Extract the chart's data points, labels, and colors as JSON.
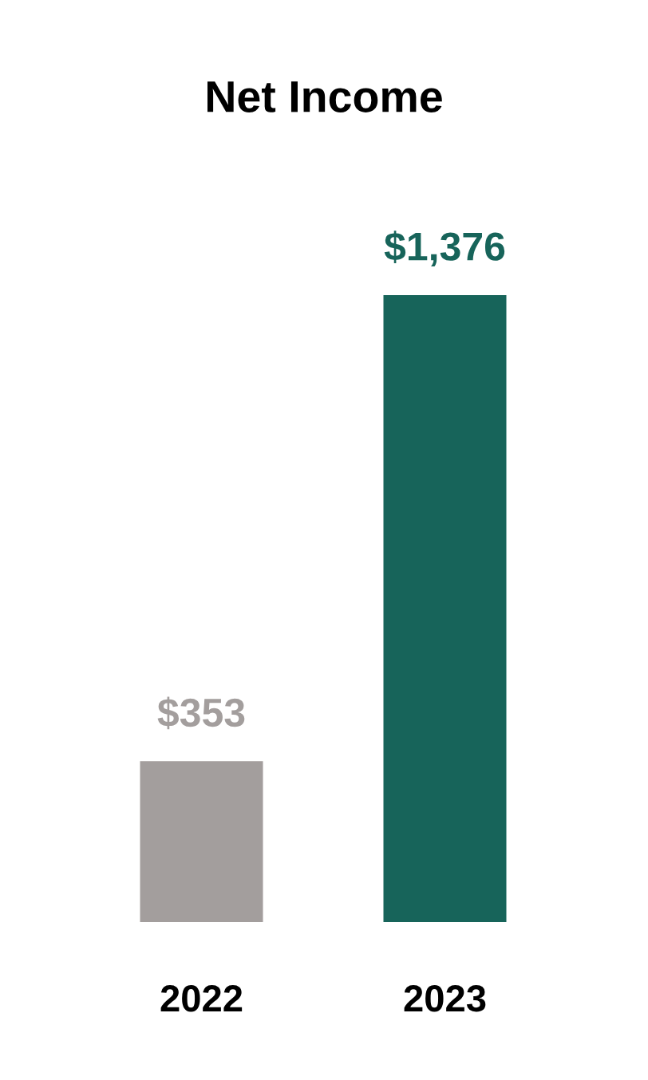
{
  "chart_data": {
    "type": "bar",
    "title": "Net Income",
    "categories": [
      "2022",
      "2023"
    ],
    "values": [
      353,
      1376
    ],
    "colors": [
      "#a39e9d",
      "#17645a"
    ],
    "value_labels": [
      "$353",
      "$1,376"
    ]
  }
}
